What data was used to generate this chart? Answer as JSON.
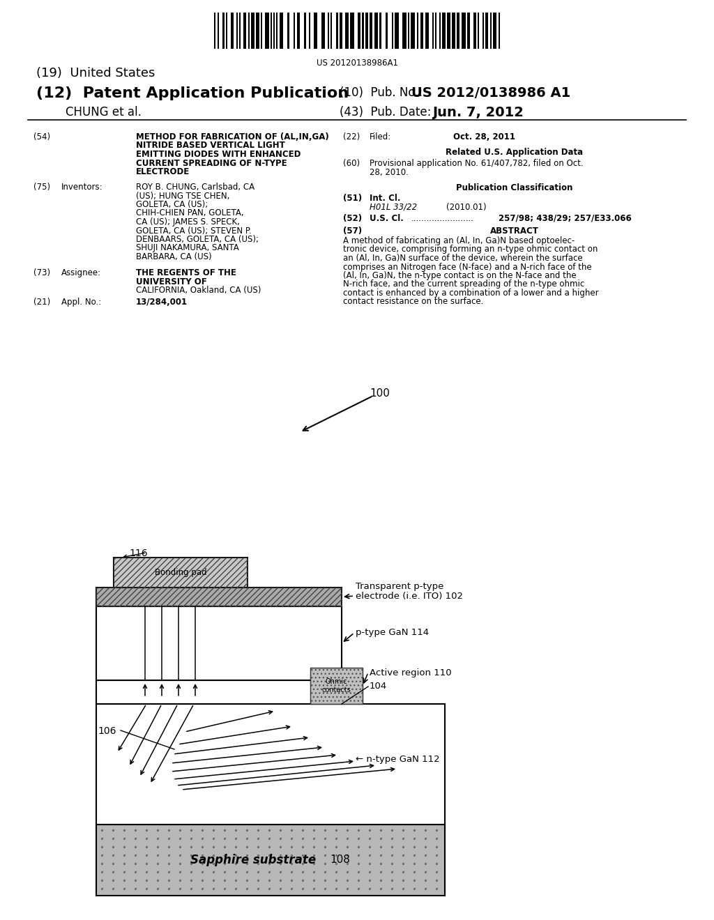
{
  "background_color": "#ffffff",
  "barcode_text": "US 20120138986A1",
  "header": {
    "us_label": "(19)  United States",
    "patent_label": "(12)  Patent Application Publication",
    "pub_no_label": "(10)  Pub. No.:",
    "pub_no_value": "US 2012/0138986 A1",
    "author": "        CHUNG et al.",
    "pub_date_label": "(43)  Pub. Date:",
    "pub_date_value": "Jun. 7, 2012"
  },
  "left_col": {
    "title_num": "(54)",
    "title_lines": [
      "METHOD FOR FABRICATION OF (AL,IN,GA)",
      "NITRIDE BASED VERTICAL LIGHT",
      "EMITTING DIODES WITH ENHANCED",
      "CURRENT SPREADING OF N-TYPE",
      "ELECTRODE"
    ],
    "inventors_num": "(75)",
    "inventors_label": "Inventors:",
    "inventors_lines": [
      "ROY B. CHUNG, Carlsbad, CA",
      "(US); HUNG TSE CHEN,",
      "GOLETA, CA (US);",
      "CHIH-CHIEN PAN, GOLETA,",
      "CA (US); JAMES S. SPECK,",
      "GOLETA, CA (US); STEVEN P.",
      "DENBAARS, GOLETA, CA (US);",
      "SHUJI NAKAMURA, SANTA",
      "BARBARA, CA (US)"
    ],
    "inventors_bold_lines": [
      "ROY B. CHUNG",
      "HUNG TSE CHEN",
      "CHIH-CHIEN PAN",
      "JAMES S. SPECK",
      "STEVEN P.",
      "DENBAARS",
      "SHUJI NAKAMURA"
    ],
    "assignee_num": "(73)",
    "assignee_label": "Assignee:",
    "assignee_lines": [
      "THE REGENTS OF THE",
      "UNIVERSITY OF",
      "CALIFORNIA, Oakland, CA (US)"
    ],
    "appl_num": "(21)",
    "appl_label": "Appl. No.:",
    "appl_value": "13/284,001"
  },
  "right_col": {
    "filed_num": "(22)",
    "filed_label": "Filed:",
    "filed_value": "Oct. 28, 2011",
    "related_header": "Related U.S. Application Data",
    "provisional_num": "(60)",
    "provisional_lines": [
      "Provisional application No. 61/407,782, filed on Oct.",
      "28, 2010."
    ],
    "pub_class_header": "Publication Classification",
    "int_cl_num": "(51)",
    "int_cl_label": "Int. Cl.",
    "int_cl_value": "H01L 33/22",
    "int_cl_year": "(2010.01)",
    "us_cl_num": "(52)",
    "us_cl_label": "U.S. Cl.",
    "us_cl_dots": "........................",
    "us_cl_value": "257/98; 438/29; 257/E33.066",
    "abstract_num": "(57)",
    "abstract_label": "ABSTRACT",
    "abstract_lines": [
      "A method of fabricating an (Al, In, Ga)N based optoelec-",
      "tronic device, comprising forming an n-type ohmic contact on",
      "an (Al, In, Ga)N surface of the device, wherein the surface",
      "comprises an Nitrogen face (N-face) and a N-rich face of the",
      "(Al, In, Ga)N, the n-type contact is on the N-face and the",
      "N-rich face, and the current spreading of the n-type ohmic",
      "contact is enhanced by a combination of a lower and a higher",
      "contact resistance on the surface."
    ]
  },
  "diagram": {
    "label_100": "100",
    "label_116": "116",
    "label_106": "106",
    "label_108": "108",
    "text_bonding_pad": "Bonding pad",
    "text_transparent_line1": "Transparent p-type",
    "text_transparent_line2": "electrode (i.e. ITO) 102",
    "text_p_type_gan": "p-type GaN 114",
    "text_active_region": "Active region 110",
    "text_active_num": "104",
    "text_n_type_gan": "n-type GaN 112",
    "text_sapphire": "Sapphire substrate",
    "text_ohmic_line1": "Ohmic",
    "text_ohmic_line2": "contacts"
  }
}
